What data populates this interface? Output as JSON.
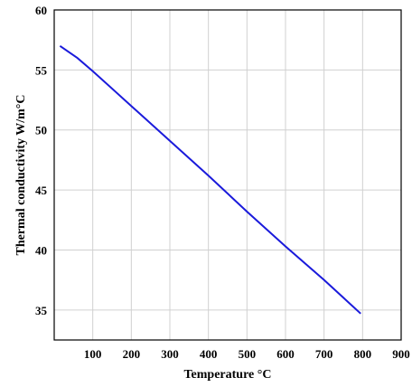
{
  "chart_data": {
    "type": "line",
    "title": "",
    "xlabel": "Temperature °C",
    "ylabel": "Thermal conductivity W/m°C",
    "xlim": [
      0,
      900
    ],
    "ylim": [
      32.5,
      60
    ],
    "x_ticks": [
      100,
      200,
      300,
      400,
      500,
      600,
      700,
      800,
      900
    ],
    "y_ticks": [
      35,
      40,
      45,
      50,
      55,
      60
    ],
    "grid": true,
    "legend": "none",
    "series": [
      {
        "color": "#1a1adb",
        "x": [
          15,
          60,
          100,
          200,
          300,
          400,
          500,
          600,
          700,
          795
        ],
        "y": [
          57.0,
          56.0,
          54.9,
          52.0,
          49.1,
          46.2,
          43.2,
          40.3,
          37.5,
          34.7
        ]
      }
    ]
  }
}
